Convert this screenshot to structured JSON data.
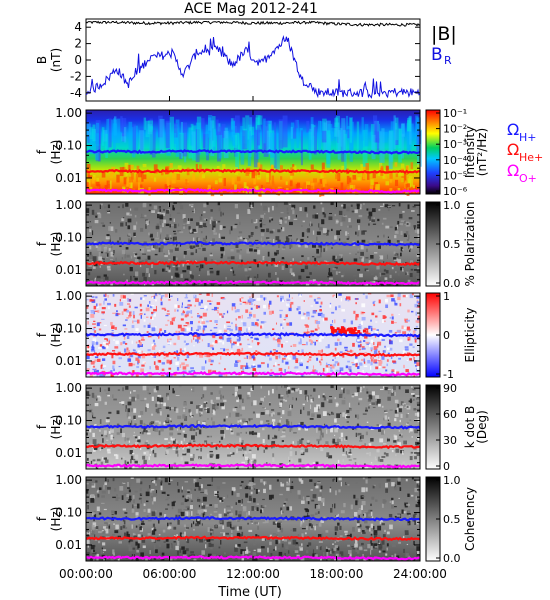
{
  "title": "ACE Mag 2012-241",
  "xlabel": "Time (UT)",
  "colors": {
    "b_total": "#000000",
    "b_r": "#1010e0",
    "h_cyclotron": "#1a1aff",
    "he_cyclotron": "#ff1010",
    "o_cyclotron": "#ff00ff"
  },
  "legend": {
    "b_total": "|B|",
    "b_r": "B",
    "b_r_sub": "R",
    "omega": "Ω",
    "h_sub": "H+",
    "he_sub": "He+",
    "o_sub": "O+"
  },
  "chart_data": [
    {
      "type": "line",
      "ylabel": "B",
      "yunit": "(nT)",
      "ylim": [
        -5,
        5
      ],
      "yticks": [
        "4",
        "2",
        "0",
        "-2",
        "-4"
      ],
      "xlim_hours": [
        0,
        24
      ],
      "series": [
        {
          "name": "|B|",
          "x_hours": [
            0,
            2,
            4,
            6,
            8,
            10,
            12,
            14,
            16,
            18,
            20,
            22,
            24
          ],
          "values": [
            4.6,
            4.6,
            4.5,
            4.5,
            4.6,
            4.6,
            4.5,
            4.5,
            4.6,
            4.4,
            4.3,
            4.3,
            4.3
          ]
        },
        {
          "name": "BR",
          "x_hours": [
            0,
            1.5,
            2.2,
            3.0,
            4.5,
            6.2,
            7.0,
            8.0,
            9.5,
            10.5,
            11.5,
            12.5,
            13.5,
            14.5,
            15.5,
            16.0,
            16.5,
            18,
            20,
            22,
            24
          ],
          "values": [
            -4.2,
            -2.4,
            -1.0,
            -3.0,
            0.2,
            0.8,
            -1.8,
            1.0,
            1.2,
            -0.6,
            1.1,
            -0.6,
            1.3,
            2.5,
            -2.5,
            -2.8,
            -3.9,
            -4.0,
            -4.0,
            -3.9,
            -4.0
          ]
        }
      ]
    },
    {
      "type": "heatmap",
      "name": "Intensity",
      "ylabel": "f",
      "yunit": "(Hz)",
      "yticks": [
        "1.00",
        "0.10",
        "0.01"
      ],
      "colorbar_label": "Intensity",
      "colorbar_unit": "(nT²/Hz)",
      "colorbar_ticks": [
        "10⁻¹",
        "10⁻²",
        "10⁻³",
        "10⁻⁴",
        "10⁻⁵",
        "10⁻⁶"
      ]
    },
    {
      "type": "heatmap",
      "name": "% Polarization",
      "ylabel": "f",
      "yunit": "(Hz)",
      "yticks": [
        "1.00",
        "0.10",
        "0.01"
      ],
      "colorbar_label": "% Polarization",
      "colorbar_ticks": [
        "1.0",
        "0.5",
        "0.0"
      ]
    },
    {
      "type": "heatmap",
      "name": "Ellipticity",
      "ylabel": "f",
      "yunit": "(Hz)",
      "yticks": [
        "1.00",
        "0.10",
        "0.01"
      ],
      "colorbar_label": "Ellipticity",
      "colorbar_ticks": [
        "1",
        "0",
        "-1"
      ]
    },
    {
      "type": "heatmap",
      "name": "k dot B",
      "ylabel": "f",
      "yunit": "(Hz)",
      "yticks": [
        "1.00",
        "0.10",
        "0.01"
      ],
      "colorbar_label": "k dot B",
      "colorbar_unit": "(Deg)",
      "colorbar_ticks": [
        "90",
        "60",
        "30",
        "0"
      ]
    },
    {
      "type": "heatmap",
      "name": "Coherency",
      "ylabel": "f",
      "yunit": "(Hz)",
      "yticks": [
        "1.00",
        "0.10",
        "0.01"
      ],
      "colorbar_label": "Coherency",
      "colorbar_ticks": [
        "1.0",
        "0.5",
        "0.0"
      ]
    },
    {
      "type": "line",
      "name": "Cyclotron frequencies",
      "series": [
        {
          "name": "ΩH+",
          "values_hz": [
            0.065,
            0.066,
            0.064,
            0.066,
            0.068,
            0.066,
            0.067,
            0.066,
            0.065,
            0.064,
            0.062,
            0.061,
            0.062
          ]
        },
        {
          "name": "ΩHe+",
          "values_hz": [
            0.016,
            0.0165,
            0.016,
            0.0165,
            0.017,
            0.0165,
            0.0168,
            0.0165,
            0.0163,
            0.016,
            0.0155,
            0.0153,
            0.0155
          ]
        },
        {
          "name": "ΩO+",
          "values_hz": [
            0.0041,
            0.0041,
            0.004,
            0.0041,
            0.0042,
            0.0041,
            0.0042,
            0.0041,
            0.0041,
            0.004,
            0.0039,
            0.0038,
            0.0039
          ]
        }
      ],
      "x_hours": [
        0,
        2,
        4,
        6,
        8,
        10,
        12,
        14,
        16,
        18,
        20,
        22,
        24
      ]
    }
  ],
  "xticks": [
    "00:00:00",
    "06:00:00",
    "12:00:00",
    "18:00:00",
    "24:00:00"
  ]
}
